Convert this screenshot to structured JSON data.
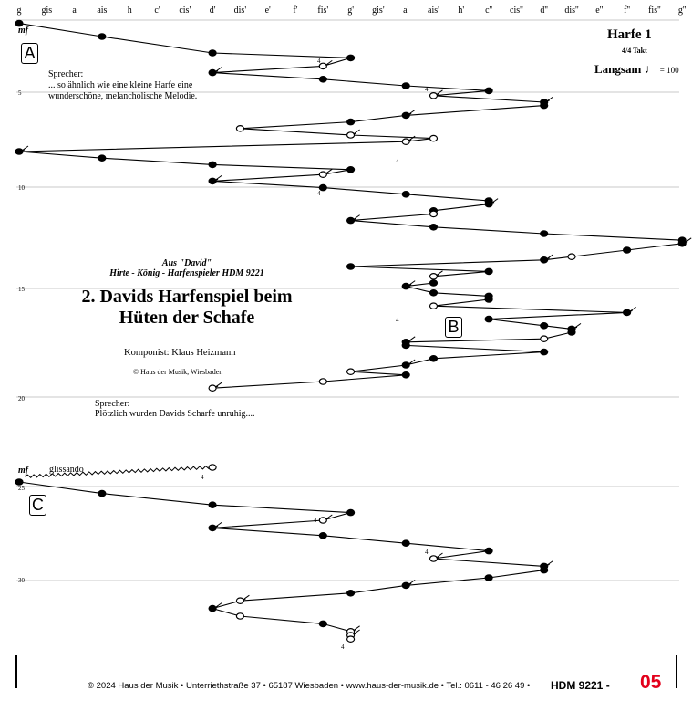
{
  "pitch_labels": [
    "g",
    "gis",
    "a",
    "ais",
    "h",
    "c'",
    "cis'",
    "d'",
    "dis'",
    "e'",
    "f'",
    "fis'",
    "g'",
    "gis'",
    "a'",
    "ais'",
    "h'",
    "c''",
    "cis''",
    "d''",
    "dis''",
    "e''",
    "f''",
    "fis''",
    "g''"
  ],
  "header": {
    "instrument": "Harfe 1",
    "meter": "4/4 Takt",
    "tempo_label": "Langsam",
    "tempo_value": "= 100"
  },
  "rehearsal_marks": {
    "a": "A",
    "b": "B",
    "c": "C"
  },
  "dynamics": {
    "first": "mf",
    "second": "mf",
    "glissando": "glissando"
  },
  "measure_numbers": {
    "m5": "5",
    "m10": "10",
    "m15": "15",
    "m20": "20",
    "m25": "25",
    "m30": "30"
  },
  "narration": {
    "first_speaker": "Sprecher:",
    "first_line1": "... so ähnlich wie eine kleine Harfe eine",
    "first_line2": "wunderschöne, melancholische Melodie.",
    "second_speaker": "Sprecher:",
    "second_line1": "Plötzlich wurden Davids Scharfe unruhig...."
  },
  "title_block": {
    "source": "Aus \"David\"",
    "subtitle": "Hirte - König - Harfenspieler HDM 9221",
    "title_line1": "2. Davids Harfenspiel beim",
    "title_line2": "Hüten der Schafe",
    "composer": "Komponist: Klaus Heizmann",
    "copyright": "© Haus der Musik, Wiesbaden"
  },
  "footer": {
    "text": "© 2024 Haus der Musik • Unterriethstraße 37 • 65187 Wiesbaden • www.haus-der-musik.de • Tel.: 0611 - 46 26 49 •",
    "code": "HDM 9221 -",
    "page_number": "05",
    "page_color": "#e3001b"
  },
  "fingering_marks": [
    "4",
    "4",
    "4",
    "4",
    "4",
    "4",
    "4",
    "4",
    "4"
  ],
  "melody_sections": [
    {
      "notes": [
        [
          0,
          1,
          "f",
          0
        ],
        [
          3,
          5,
          "f",
          0
        ],
        [
          7,
          10,
          "f",
          0
        ],
        [
          12,
          11.5,
          "f",
          0
        ],
        [
          11,
          14,
          "o",
          1
        ],
        [
          7,
          16,
          "f",
          1
        ],
        [
          11,
          18,
          "f",
          0
        ],
        [
          14,
          20,
          "f",
          0
        ],
        [
          17,
          21.5,
          "f",
          0
        ],
        [
          15,
          23,
          "o",
          1
        ],
        [
          19,
          25,
          "f",
          1
        ],
        [
          19,
          26,
          "f",
          0
        ],
        [
          14,
          29,
          "f",
          1
        ],
        [
          12,
          31,
          "f",
          0
        ],
        [
          8,
          33,
          "o",
          0
        ],
        [
          12,
          35,
          "o",
          1
        ],
        [
          15,
          36,
          "o",
          0
        ],
        [
          14,
          37,
          "o",
          1
        ],
        [
          0,
          40,
          "f",
          1
        ],
        [
          3,
          42,
          "f",
          0
        ],
        [
          7,
          44,
          "f",
          0
        ],
        [
          12,
          45.5,
          "f",
          0
        ],
        [
          11,
          47,
          "o",
          1
        ],
        [
          7,
          49,
          "f",
          1
        ],
        [
          11,
          51,
          "f",
          0
        ],
        [
          14,
          53,
          "f",
          0
        ],
        [
          17,
          55,
          "f",
          0
        ],
        [
          17,
          56,
          "f",
          1
        ],
        [
          15,
          58,
          "f",
          0
        ],
        [
          15,
          59,
          "o",
          0
        ],
        [
          12,
          61,
          "f",
          1
        ],
        [
          15,
          63,
          "f",
          0
        ],
        [
          19,
          65,
          "f",
          0
        ],
        [
          24,
          67,
          "f",
          0
        ],
        [
          24,
          68,
          "f",
          1
        ],
        [
          22,
          70,
          "f",
          0
        ],
        [
          20,
          72,
          "o",
          0
        ],
        [
          19,
          73,
          "f",
          1
        ],
        [
          12,
          75,
          "f",
          0
        ],
        [
          17,
          76.5,
          "f",
          0
        ],
        [
          15,
          78,
          "o",
          1
        ],
        [
          15,
          80,
          "f",
          0
        ],
        [
          14,
          81,
          "f",
          1
        ],
        [
          15,
          83,
          "f",
          0
        ],
        [
          17,
          84,
          "f",
          0
        ],
        [
          17,
          85,
          "f",
          0
        ],
        [
          15,
          87,
          "o",
          0
        ],
        [
          22,
          89,
          "f",
          1
        ],
        [
          17,
          91,
          "f",
          0
        ],
        [
          19,
          93,
          "f",
          0
        ],
        [
          20,
          94,
          "f",
          1
        ],
        [
          20,
          95,
          "f",
          0
        ],
        [
          19,
          97,
          "o",
          0
        ],
        [
          14,
          98,
          "f",
          1
        ],
        [
          14,
          99,
          "f",
          0
        ],
        [
          19,
          101,
          "f",
          0
        ],
        [
          15,
          103,
          "f",
          0
        ],
        [
          14,
          105,
          "f",
          1
        ],
        [
          12,
          107,
          "o",
          0
        ],
        [
          14,
          108,
          "f",
          0
        ],
        [
          11,
          110,
          "o",
          0
        ],
        [
          7,
          112,
          "o",
          1
        ]
      ]
    },
    {
      "notes": [
        [
          0,
          114,
          "f",
          0
        ],
        [
          3,
          117,
          "f",
          0
        ],
        [
          7,
          120,
          "f",
          0
        ],
        [
          12,
          122,
          "f",
          0
        ],
        [
          11,
          124,
          "o",
          1
        ],
        [
          7,
          126,
          "f",
          1
        ],
        [
          11,
          128,
          "f",
          0
        ],
        [
          14,
          130,
          "f",
          0
        ],
        [
          17,
          132,
          "f",
          0
        ],
        [
          15,
          134,
          "o",
          1
        ],
        [
          19,
          136,
          "f",
          1
        ],
        [
          19,
          137,
          "f",
          0
        ],
        [
          17,
          139,
          "f",
          0
        ],
        [
          14,
          141,
          "f",
          1
        ],
        [
          12,
          143,
          "f",
          0
        ],
        [
          8,
          145,
          "o",
          1
        ],
        [
          7,
          147,
          "f",
          1
        ],
        [
          8,
          149,
          "o",
          0
        ],
        [
          11,
          151,
          "f",
          0
        ],
        [
          12,
          153,
          "o",
          1
        ],
        [
          12,
          154,
          "o",
          1
        ],
        [
          12,
          155,
          "o",
          0
        ]
      ]
    }
  ]
}
